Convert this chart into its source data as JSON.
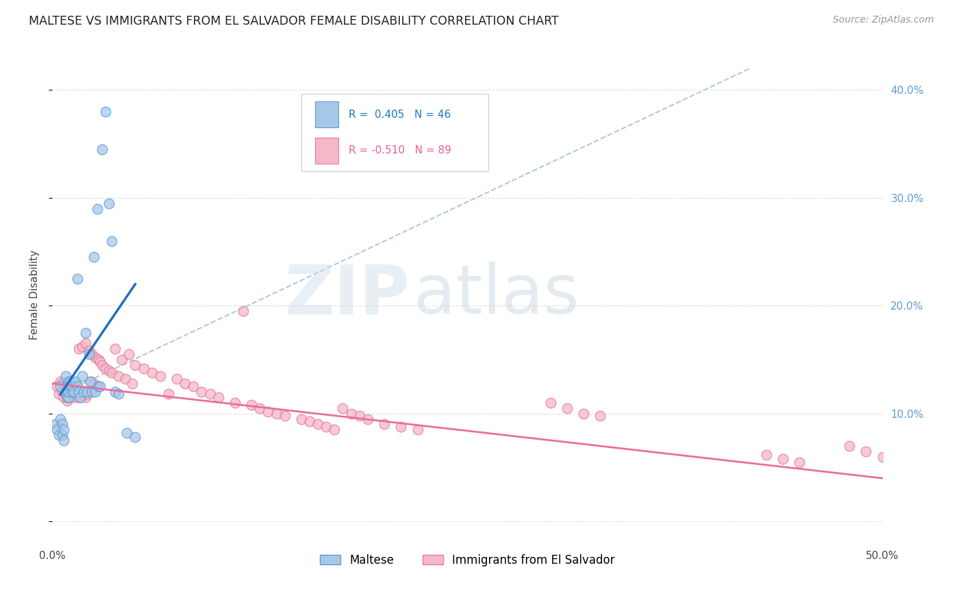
{
  "title": "MALTESE VS IMMIGRANTS FROM EL SALVADOR FEMALE DISABILITY CORRELATION CHART",
  "source": "Source: ZipAtlas.com",
  "ylabel_label": "Female Disability",
  "xlim": [
    0.0,
    0.5
  ],
  "ylim": [
    -0.02,
    0.44
  ],
  "xticks": [
    0.0,
    0.1,
    0.2,
    0.3,
    0.4,
    0.5
  ],
  "xtick_labels": [
    "0.0%",
    "",
    "",
    "",
    "",
    "50.0%"
  ],
  "yticks": [
    0.0,
    0.1,
    0.2,
    0.3,
    0.4
  ],
  "ytick_labels_right": [
    "",
    "10.0%",
    "20.0%",
    "30.0%",
    "40.0%"
  ],
  "blue_R": 0.405,
  "blue_N": 46,
  "pink_R": -0.51,
  "pink_N": 89,
  "blue_color": "#a8c8e8",
  "pink_color": "#f4b8c8",
  "blue_edge_color": "#5b9bd5",
  "pink_edge_color": "#e87898",
  "blue_line_color": "#1f6fbf",
  "pink_line_color": "#e8709a",
  "dashed_line_color": "#b0c8e0",
  "background_color": "#ffffff",
  "grid_color": "#e0e0e0",
  "blue_scatter_x": [
    0.002,
    0.003,
    0.004,
    0.005,
    0.005,
    0.006,
    0.006,
    0.007,
    0.007,
    0.008,
    0.008,
    0.009,
    0.009,
    0.01,
    0.01,
    0.01,
    0.011,
    0.011,
    0.012,
    0.012,
    0.013,
    0.014,
    0.015,
    0.015,
    0.016,
    0.017,
    0.018,
    0.019,
    0.02,
    0.021,
    0.022,
    0.023,
    0.024,
    0.025,
    0.026,
    0.027,
    0.028,
    0.029,
    0.03,
    0.032,
    0.034,
    0.036,
    0.038,
    0.04,
    0.045,
    0.05
  ],
  "blue_scatter_y": [
    0.09,
    0.085,
    0.08,
    0.125,
    0.095,
    0.08,
    0.09,
    0.075,
    0.085,
    0.12,
    0.135,
    0.115,
    0.125,
    0.115,
    0.12,
    0.13,
    0.125,
    0.13,
    0.12,
    0.125,
    0.12,
    0.13,
    0.125,
    0.225,
    0.12,
    0.115,
    0.135,
    0.12,
    0.175,
    0.12,
    0.155,
    0.13,
    0.12,
    0.245,
    0.12,
    0.29,
    0.125,
    0.125,
    0.345,
    0.38,
    0.295,
    0.26,
    0.12,
    0.118,
    0.082,
    0.078
  ],
  "pink_scatter_x": [
    0.003,
    0.004,
    0.005,
    0.006,
    0.006,
    0.007,
    0.007,
    0.008,
    0.008,
    0.009,
    0.009,
    0.01,
    0.01,
    0.011,
    0.011,
    0.012,
    0.012,
    0.013,
    0.013,
    0.014,
    0.015,
    0.015,
    0.016,
    0.016,
    0.017,
    0.018,
    0.018,
    0.019,
    0.02,
    0.02,
    0.021,
    0.022,
    0.023,
    0.024,
    0.025,
    0.026,
    0.027,
    0.028,
    0.029,
    0.03,
    0.032,
    0.034,
    0.036,
    0.038,
    0.04,
    0.042,
    0.044,
    0.046,
    0.048,
    0.05,
    0.055,
    0.06,
    0.065,
    0.07,
    0.075,
    0.08,
    0.085,
    0.09,
    0.095,
    0.1,
    0.11,
    0.115,
    0.12,
    0.125,
    0.13,
    0.135,
    0.14,
    0.15,
    0.155,
    0.16,
    0.165,
    0.17,
    0.175,
    0.18,
    0.185,
    0.19,
    0.2,
    0.21,
    0.22,
    0.3,
    0.31,
    0.32,
    0.33,
    0.43,
    0.44,
    0.45,
    0.48,
    0.49,
    0.5
  ],
  "pink_scatter_y": [
    0.125,
    0.118,
    0.13,
    0.12,
    0.128,
    0.115,
    0.122,
    0.118,
    0.125,
    0.112,
    0.12,
    0.115,
    0.125,
    0.118,
    0.125,
    0.115,
    0.122,
    0.118,
    0.125,
    0.12,
    0.115,
    0.122,
    0.118,
    0.16,
    0.115,
    0.118,
    0.162,
    0.12,
    0.115,
    0.165,
    0.118,
    0.158,
    0.13,
    0.155,
    0.128,
    0.152,
    0.125,
    0.15,
    0.148,
    0.145,
    0.142,
    0.14,
    0.138,
    0.16,
    0.135,
    0.15,
    0.132,
    0.155,
    0.128,
    0.145,
    0.142,
    0.138,
    0.135,
    0.118,
    0.132,
    0.128,
    0.125,
    0.12,
    0.118,
    0.115,
    0.11,
    0.195,
    0.108,
    0.105,
    0.102,
    0.1,
    0.098,
    0.095,
    0.093,
    0.09,
    0.088,
    0.085,
    0.105,
    0.1,
    0.098,
    0.095,
    0.09,
    0.088,
    0.085,
    0.11,
    0.105,
    0.1,
    0.098,
    0.062,
    0.058,
    0.055,
    0.07,
    0.065,
    0.06
  ],
  "blue_line_x": [
    0.005,
    0.05
  ],
  "blue_line_y": [
    0.118,
    0.22
  ],
  "dashed_line_x": [
    0.005,
    0.42
  ],
  "dashed_line_y": [
    0.118,
    0.42
  ],
  "pink_line_x": [
    0.0,
    0.5
  ],
  "pink_line_y": [
    0.128,
    0.04
  ]
}
